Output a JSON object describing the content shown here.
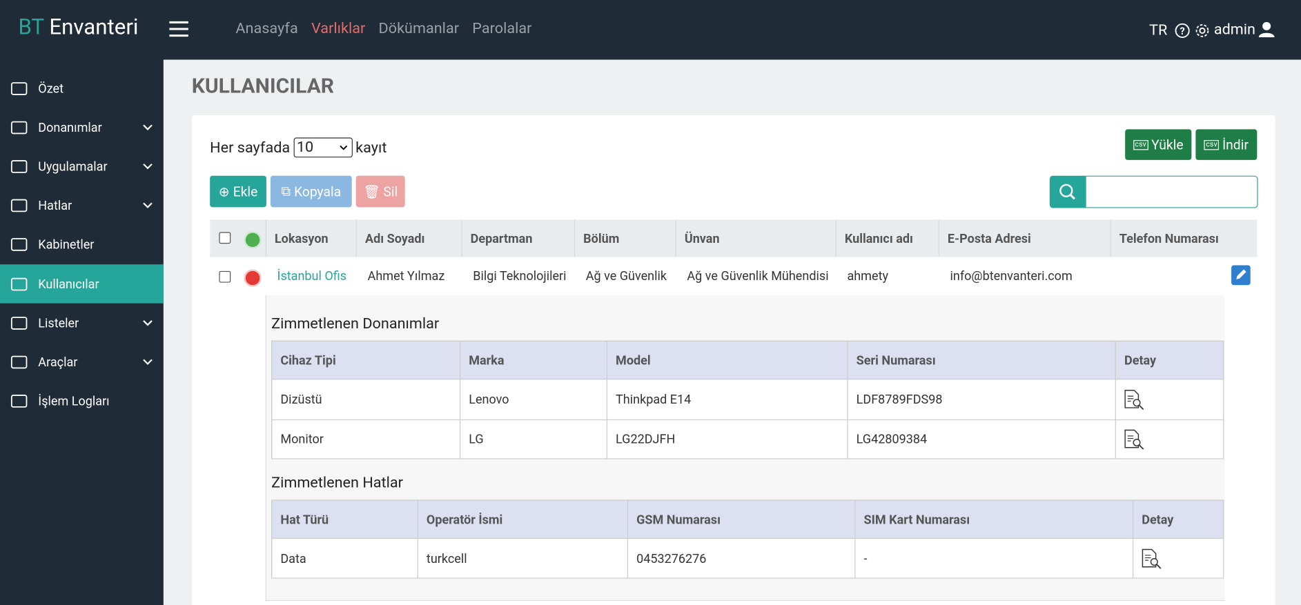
{
  "header": {
    "brand_prefix": "BT",
    "brand": "Envanteri",
    "nav": [
      "Anasayfa",
      "Varlıklar",
      "Dökümanlar",
      "Parolalar"
    ],
    "lang": "TR",
    "user": "admin"
  },
  "sidebar": {
    "items": [
      "Özet",
      "Donanımlar",
      "Uygulamalar",
      "Hatlar",
      "Kabinetler",
      "Kullanıcılar",
      "Listeler",
      "Araçlar",
      "İşlem Logları"
    ]
  },
  "page": {
    "title": "KULLANICILAR",
    "per_page_label": "Her sayfada",
    "per_page": "10",
    "per_page_suffix": "kayıt",
    "csv_icon": "csv",
    "buttons": {
      "upload": "Yükle",
      "download": "İndir",
      "add": "Ekle",
      "copy": "Kopyala",
      "delete": "Sil"
    }
  },
  "table": {
    "headers": [
      "Lokasyon",
      "Adı Soyadı",
      "Departman",
      "Bölüm",
      "Ünvan",
      "Kullanıcı adı",
      "E-Posta Adresi",
      "Telefon Numarası"
    ],
    "rows": [
      {
        "location": "İstanbul Ofis",
        "name": "Ahmet Yılmaz",
        "department": "Bilgi Teknolojileri",
        "section": "Ağ ve Güvenlik",
        "title": "Ağ ve Güvenlik Mühendisi",
        "username": "ahmety",
        "email": "info@btenvanteri.com"
      }
    ]
  },
  "hardware": {
    "title": "Zimmetlenen Donanımlar",
    "headers": [
      "Cihaz Tipi",
      "Marka",
      "Model",
      "Seri Numarası",
      "Detay"
    ],
    "rows": [
      [
        "Dizüstü",
        "Lenovo",
        "Thinkpad E14",
        "LDF8789FDS98"
      ],
      [
        "Monitor",
        "LG",
        "LG22DJFH",
        "LG42809384"
      ]
    ]
  },
  "lines": {
    "title": "Zimmetlenen Hatlar",
    "headers": [
      "Hat Türü",
      "Operatör İsmi",
      "GSM Numarası",
      "SIM Kart Numarası",
      "Detay"
    ],
    "rows": [
      [
        "Data",
        "turkcell",
        "0453276276",
        "-"
      ]
    ]
  }
}
